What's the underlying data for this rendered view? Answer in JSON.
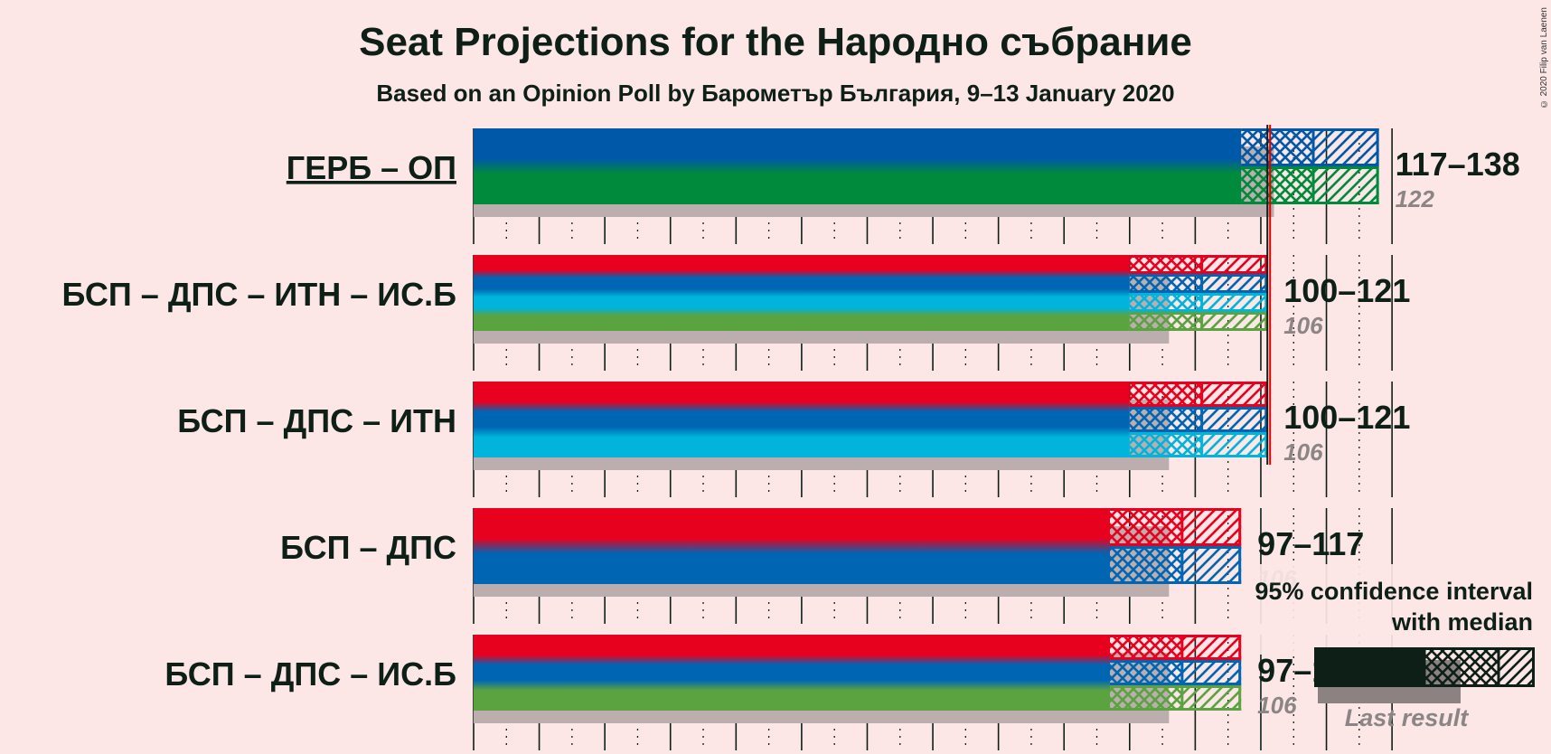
{
  "title": "Seat Projections for the Народно събрание",
  "subtitle": "Based on an Opinion Poll by Барометър България, 9–13 January 2020",
  "credit": "© 2020 Filip van Laenen",
  "colors": {
    "background": "#fce6e6",
    "text": "#0d1f17",
    "last_result": "#bcaeae",
    "majority_line": "#e00000",
    "ГЕРБ": "#0059a8",
    "ОП": "#008a3c",
    "БСП": "#e8001f",
    "ДПС": "#0066b3",
    "ИТН": "#00b4dc",
    "ИС.Б": "#5ba241"
  },
  "legend": {
    "line1": "95% confidence interval",
    "line2": "with median",
    "last_result": "Last result"
  },
  "chart_data": {
    "type": "bar",
    "xlim": [
      0,
      140
    ],
    "majority": 121,
    "categories": [
      "ГЕРБ – ОП",
      "БСП – ДПС – ИТН – ИС.Б",
      "БСП – ДПС – ИТН",
      "БСП – ДПС",
      "БСП – ДПС – ИС.Б"
    ],
    "series": [
      {
        "name": "ГЕРБ – ОП",
        "underline": true,
        "parties": [
          "ГЕРБ",
          "ОП"
        ],
        "ci_low": 117,
        "median": 128,
        "ci_high": 138,
        "last_result": 122,
        "range_label": "117–138",
        "last_label": "122"
      },
      {
        "name": "БСП – ДПС – ИТН – ИС.Б",
        "underline": false,
        "parties": [
          "БСП",
          "ДПС",
          "ИТН",
          "ИС.Б"
        ],
        "ci_low": 100,
        "median": 111,
        "ci_high": 121,
        "last_result": 106,
        "range_label": "100–121",
        "last_label": "106"
      },
      {
        "name": "БСП – ДПС – ИТН",
        "underline": false,
        "parties": [
          "БСП",
          "ДПС",
          "ИТН"
        ],
        "ci_low": 100,
        "median": 111,
        "ci_high": 121,
        "last_result": 106,
        "range_label": "100–121",
        "last_label": "106"
      },
      {
        "name": "БСП – ДПС",
        "underline": false,
        "parties": [
          "БСП",
          "ДПС"
        ],
        "ci_low": 97,
        "median": 108,
        "ci_high": 117,
        "last_result": 106,
        "range_label": "97–117",
        "last_label": "106"
      },
      {
        "name": "БСП – ДПС – ИС.Б",
        "underline": false,
        "parties": [
          "БСП",
          "ДПС",
          "ИС.Б"
        ],
        "ci_low": 97,
        "median": 108,
        "ci_high": 117,
        "last_result": 106,
        "range_label": "97–117",
        "last_label": "106"
      }
    ]
  }
}
